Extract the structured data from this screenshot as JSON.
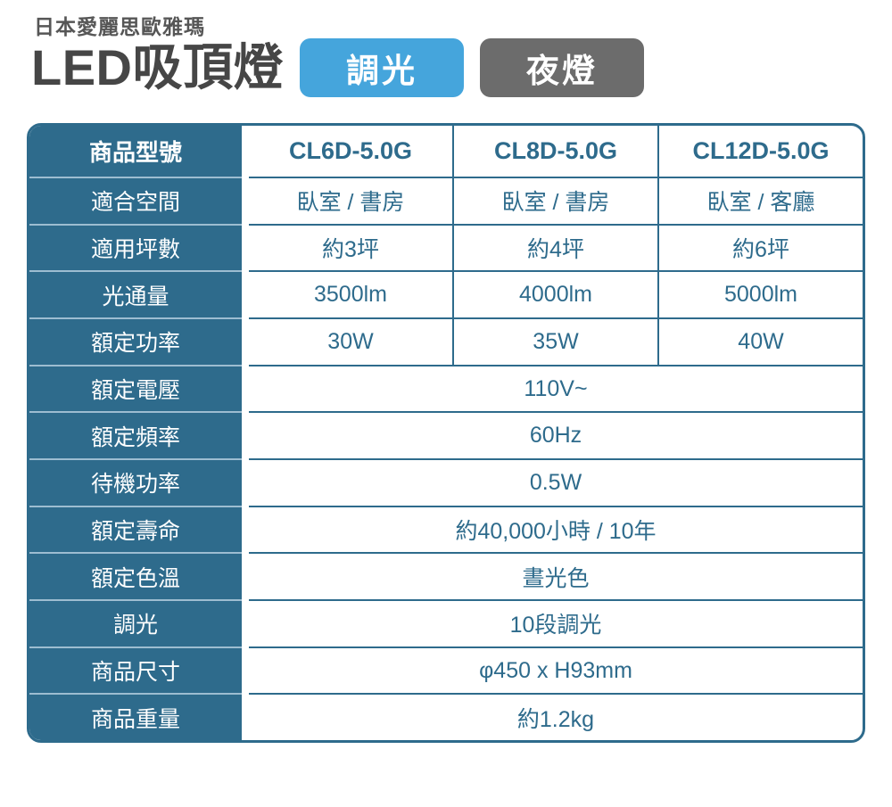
{
  "header": {
    "brand": "日本愛麗思歐雅瑪",
    "title": "LED吸頂燈",
    "badges": [
      {
        "label": "調光",
        "color": "#45a5dc"
      },
      {
        "label": "夜燈",
        "color": "#6c6c6c"
      }
    ]
  },
  "table": {
    "corner_label": "商品型號",
    "models": [
      "CL6D-5.0G",
      "CL8D-5.0G",
      "CL12D-5.0G"
    ],
    "rows_3col": [
      {
        "label": "適合空間",
        "values": [
          "臥室 / 書房",
          "臥室 / 書房",
          "臥室 / 客廳"
        ]
      },
      {
        "label": "適用坪數",
        "values": [
          "約3坪",
          "約4坪",
          "約6坪"
        ]
      },
      {
        "label": "光通量",
        "values": [
          "3500lm",
          "4000lm",
          "5000lm"
        ]
      },
      {
        "label": "額定功率",
        "values": [
          "30W",
          "35W",
          "40W"
        ]
      }
    ],
    "rows_span": [
      {
        "label": "額定電壓",
        "value": "110V~"
      },
      {
        "label": "額定頻率",
        "value": "60Hz"
      },
      {
        "label": "待機功率",
        "value": "0.5W"
      },
      {
        "label": "額定壽命",
        "value": "約40,000小時 / 10年"
      },
      {
        "label": "額定色溫",
        "value": "晝光色"
      },
      {
        "label": "調光",
        "value": "10段調光"
      },
      {
        "label": "商品尺寸",
        "value": "φ450 x H93mm"
      },
      {
        "label": "商品重量",
        "value": "約1.2kg"
      }
    ]
  },
  "colors": {
    "teal": "#2e6b8c",
    "label_separator": "#9dbdd1",
    "badge_blue": "#45a5dc",
    "badge_gray": "#6c6c6c",
    "title_gray": "#464646"
  }
}
